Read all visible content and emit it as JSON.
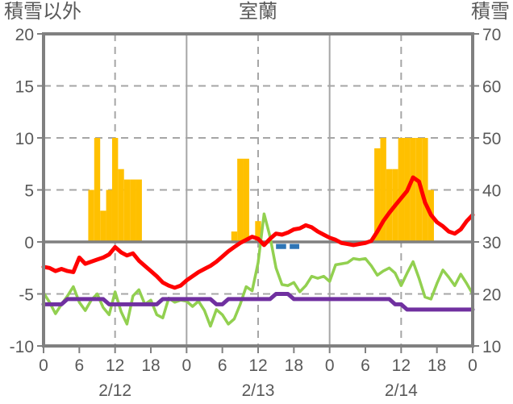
{
  "header": {
    "left_label": "積雪以外",
    "title": "室蘭",
    "right_label": "積雪"
  },
  "chart_data": {
    "type": "combo bar+line, dual y-axis",
    "title": "室蘭",
    "x_axis": {
      "unit": "hour",
      "range_hours": [
        0,
        72
      ],
      "tick_every_hours": 6,
      "tick_labels": [
        "0",
        "6",
        "12",
        "18",
        "0",
        "6",
        "12",
        "18",
        "0",
        "6",
        "12",
        "18",
        "0"
      ],
      "day_labels": [
        {
          "text": "2/12",
          "at_hour": 12
        },
        {
          "text": "2/13",
          "at_hour": 36
        },
        {
          "text": "2/14",
          "at_hour": 60
        }
      ]
    },
    "left_axis": {
      "title": "積雪以外",
      "min": -10,
      "max": 20,
      "ticks": [
        20,
        15,
        10,
        5,
        0,
        -5,
        -10
      ]
    },
    "right_axis": {
      "title": "積雪",
      "min": 10,
      "max": 70,
      "ticks": [
        70,
        60,
        50,
        40,
        30,
        20,
        10
      ]
    },
    "series": {
      "orange_bars": {
        "type": "bar",
        "axis": "left",
        "color": "#FFC000",
        "points": [
          [
            8,
            5
          ],
          [
            9,
            10
          ],
          [
            10,
            3
          ],
          [
            11,
            5
          ],
          [
            12,
            10
          ],
          [
            13,
            7
          ],
          [
            14,
            6
          ],
          [
            15,
            6
          ],
          [
            16,
            6
          ],
          [
            32,
            1
          ],
          [
            33,
            8
          ],
          [
            34,
            8
          ],
          [
            36,
            2
          ],
          [
            56,
            9
          ],
          [
            57,
            10
          ],
          [
            58,
            7
          ],
          [
            59,
            7
          ],
          [
            60,
            10
          ],
          [
            61,
            10
          ],
          [
            62,
            10
          ],
          [
            63,
            10
          ],
          [
            64,
            10
          ],
          [
            65,
            5
          ]
        ]
      },
      "blue_bars": {
        "type": "bar",
        "axis": "left",
        "color": "#2E75B6",
        "segments": [
          {
            "from_hour": 39.0,
            "to_hour": 40.7,
            "value": -0.6
          },
          {
            "from_hour": 41.3,
            "to_hour": 42.9,
            "value": -0.6
          }
        ]
      },
      "red_line": {
        "type": "line",
        "axis": "left",
        "color": "#FF0000",
        "stroke_width": 5,
        "hourly_values": [
          -2.4,
          -2.5,
          -2.8,
          -2.6,
          -2.8,
          -2.9,
          -1.5,
          -2.1,
          -1.9,
          -1.7,
          -1.5,
          -1.2,
          -0.5,
          -1.0,
          -1.3,
          -1.1,
          -1.8,
          -2.3,
          -2.8,
          -3.3,
          -3.9,
          -4.2,
          -4.4,
          -4.2,
          -3.7,
          -3.3,
          -2.9,
          -2.6,
          -2.3,
          -1.9,
          -1.4,
          -0.9,
          -0.5,
          -0.1,
          0.2,
          0.5,
          0.3,
          -0.3,
          0.3,
          0.8,
          0.7,
          0.9,
          1.2,
          1.3,
          1.6,
          1.4,
          1.0,
          0.7,
          0.4,
          0.2,
          -0.1,
          -0.2,
          -0.3,
          -0.2,
          -0.1,
          0.1,
          1.0,
          2.0,
          2.8,
          3.5,
          4.2,
          4.9,
          6.2,
          5.8,
          3.8,
          2.6,
          1.9,
          1.5,
          1.0,
          0.8,
          1.2,
          2.0,
          2.6
        ]
      },
      "green_line": {
        "type": "line",
        "axis": "left",
        "color": "#92D050",
        "stroke_width": 3.5,
        "hourly_values": [
          -4.9,
          -5.8,
          -6.9,
          -6.0,
          -5.2,
          -4.3,
          -5.8,
          -6.6,
          -5.6,
          -5.0,
          -6.3,
          -7.0,
          -4.8,
          -6.7,
          -7.9,
          -5.2,
          -4.6,
          -6.0,
          -5.6,
          -7.0,
          -7.3,
          -5.4,
          -5.8,
          -5.6,
          -5.7,
          -6.2,
          -5.7,
          -6.6,
          -8.1,
          -6.5,
          -7.0,
          -7.9,
          -7.4,
          -6.0,
          -4.3,
          -4.7,
          -2.0,
          2.7,
          0.5,
          -2.5,
          -4.1,
          -4.2,
          -3.9,
          -4.8,
          -4.2,
          -3.3,
          -3.5,
          -3.3,
          -3.8,
          -2.2,
          -2.1,
          -2.0,
          -1.6,
          -1.7,
          -1.6,
          -2.3,
          -3.2,
          -2.8,
          -2.5,
          -3.0,
          -4.2,
          -3.0,
          -1.9,
          -3.5,
          -5.3,
          -5.5,
          -4.0,
          -2.7,
          -3.4,
          -4.2,
          -3.1,
          -4.0,
          -5.0
        ]
      },
      "purple_line": {
        "type": "line",
        "axis": "right",
        "color": "#7030A0",
        "stroke_width": 5,
        "hourly_values": [
          18,
          18,
          18,
          18,
          19,
          19,
          19,
          19,
          19,
          19,
          19,
          18,
          18,
          18,
          18,
          18,
          18,
          18,
          18,
          18,
          19,
          19,
          19,
          19,
          19,
          19,
          19,
          19,
          19,
          18,
          18,
          19,
          19,
          19,
          19,
          19,
          19,
          19,
          19,
          20,
          20,
          20,
          19,
          19,
          19,
          19,
          19,
          19,
          19,
          19,
          19,
          19,
          19,
          19,
          19,
          19,
          19,
          19,
          19,
          18,
          18,
          17,
          17,
          17,
          17,
          17,
          17,
          17,
          17,
          17,
          17,
          17,
          17
        ]
      }
    },
    "style": {
      "grid_color": "#A6A6A6",
      "axis_color": "#808080",
      "text_color": "#595959",
      "background": "#FFFFFF",
      "horizontal_dashed_gridlines_at_left_values": [
        15,
        10,
        5,
        -5
      ],
      "vertical_dashed_gridlines_at_hours": [
        12,
        36,
        60
      ],
      "vertical_solid_gridlines_at_hours": [
        24,
        48
      ],
      "zero_line_at_left_value": 0
    }
  }
}
